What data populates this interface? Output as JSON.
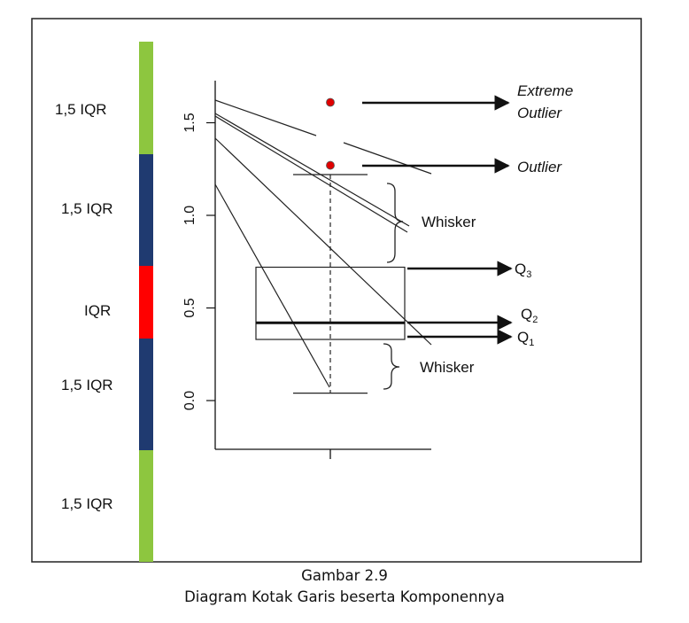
{
  "figure": {
    "title": "Gambar 2.9",
    "subtitle": "Diagram Kotak Garis beserta Komponennya"
  },
  "iqr_scale": {
    "segments": [
      {
        "label": "1,5 IQR",
        "color": "#8dc63f"
      },
      {
        "label": "1,5 IQR",
        "color": "#1f3a70"
      },
      {
        "label": "IQR",
        "color": "#ff0000"
      },
      {
        "label": "1,5 IQR",
        "color": "#1f3a70"
      },
      {
        "label": "1,5 IQR",
        "color": "#8dc63f"
      }
    ]
  },
  "axis": {
    "ticks": [
      "0.0",
      "0.5",
      "1.0",
      "1.5"
    ],
    "tick_values": [
      0.0,
      0.5,
      1.0,
      1.5
    ]
  },
  "boxplot": {
    "whisker_low": 0.04,
    "q1": 0.33,
    "median": 0.42,
    "q3": 0.72,
    "whisker_high": 1.22,
    "outlier": 1.27,
    "extreme_outlier": 1.61,
    "outlier_color": "#e00000"
  },
  "annotations": {
    "extreme_outlier_line1": "Extreme",
    "extreme_outlier_line2": "Outlier",
    "outlier": "Outlier",
    "whisker_upper": "Whisker",
    "whisker_lower": "Whisker",
    "q3": "Q",
    "q3_sub": "3",
    "q2": "Q",
    "q2_sub": "2",
    "q1": "Q",
    "q1_sub": "1"
  }
}
